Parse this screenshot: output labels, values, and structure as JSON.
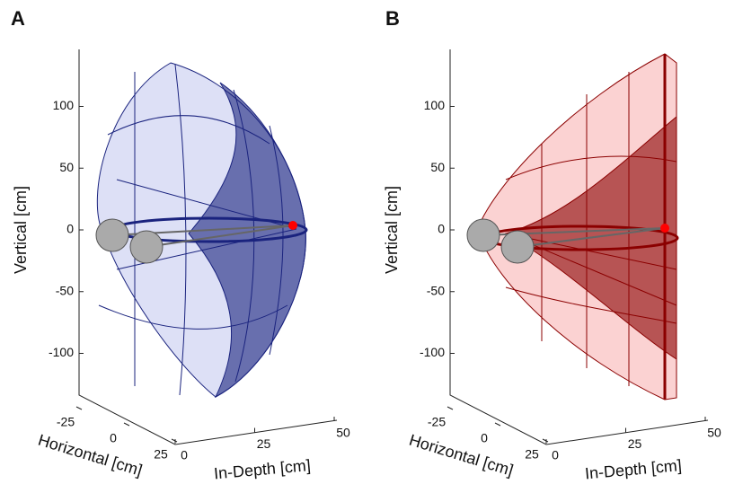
{
  "chart_data": [
    {
      "type": "surface3d",
      "panel": "A",
      "color": "#1a237e",
      "fill": "#dde0f6",
      "zlabel": "Vertical [cm]",
      "xlabel": "Horizontal [cm]",
      "ylabel": "In-Depth [cm]",
      "zticks": [
        -100,
        -50,
        0,
        50,
        100
      ],
      "xticks": [
        -25,
        0,
        25
      ],
      "yticks": [
        0,
        25,
        50
      ]
    },
    {
      "type": "surface3d",
      "panel": "B",
      "color": "#8b0000",
      "fill": "#fbd2d2",
      "zlabel": "Vertical [cm]",
      "xlabel": "Horizontal [cm]",
      "ylabel": "In-Depth [cm]",
      "zticks": [
        -100,
        -50,
        0,
        50,
        100
      ],
      "xticks": [
        -25,
        0,
        25
      ],
      "yticks": [
        0,
        25,
        50
      ]
    }
  ]
}
